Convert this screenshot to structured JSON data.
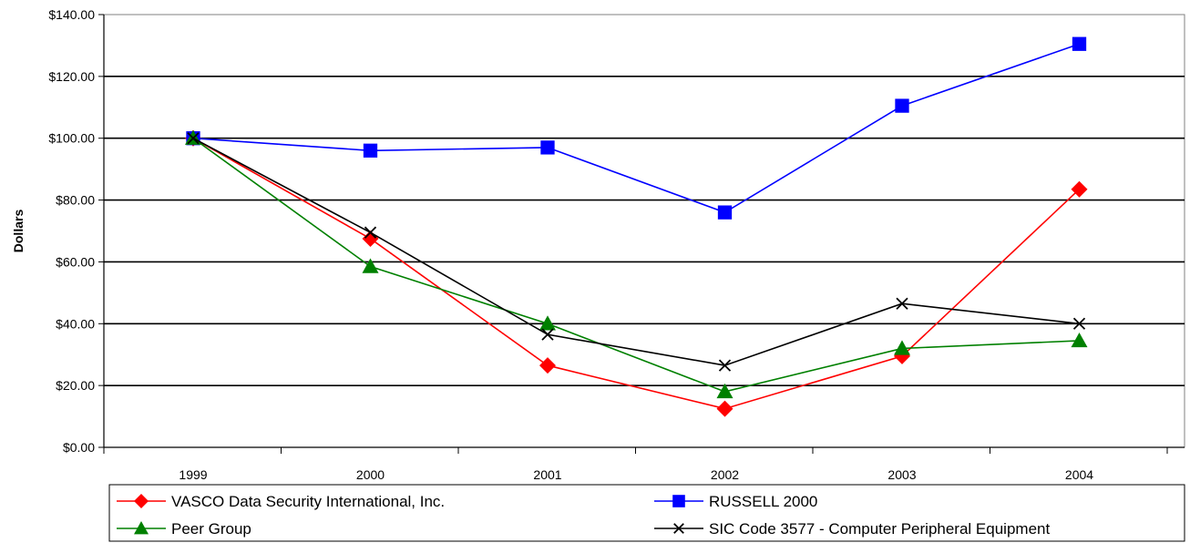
{
  "chart_data": {
    "type": "line",
    "title": "",
    "xlabel": "",
    "ylabel": "Dollars",
    "categories": [
      "1999",
      "2000",
      "2001",
      "2002",
      "2003",
      "2004"
    ],
    "ylim": [
      0,
      140
    ],
    "yticks": [
      0,
      20,
      40,
      60,
      80,
      100,
      120,
      140
    ],
    "ytick_labels": [
      "$0.00",
      "$20.00",
      "$40.00",
      "$60.00",
      "$80.00",
      "$100.00",
      "$120.00",
      "$140.00"
    ],
    "grid": "horizontal",
    "legend_position": "bottom",
    "series": [
      {
        "name": "VASCO Data Security International, Inc.",
        "color": "#ff0000",
        "marker": "diamond",
        "values": [
          100,
          67.5,
          26.5,
          12.5,
          29.5,
          83.5
        ]
      },
      {
        "name": "RUSSELL 2000",
        "color": "#0000ff",
        "marker": "square",
        "values": [
          100,
          96,
          97,
          76,
          110.5,
          130.5
        ]
      },
      {
        "name": "Peer Group",
        "color": "#008000",
        "marker": "triangle",
        "values": [
          100,
          58.5,
          40,
          18,
          32,
          34.5
        ]
      },
      {
        "name": "SIC Code 3577 - Computer Peripheral Equipment",
        "color": "#000000",
        "marker": "x",
        "values": [
          100,
          69.5,
          36.5,
          26.5,
          46.5,
          40
        ]
      }
    ]
  }
}
